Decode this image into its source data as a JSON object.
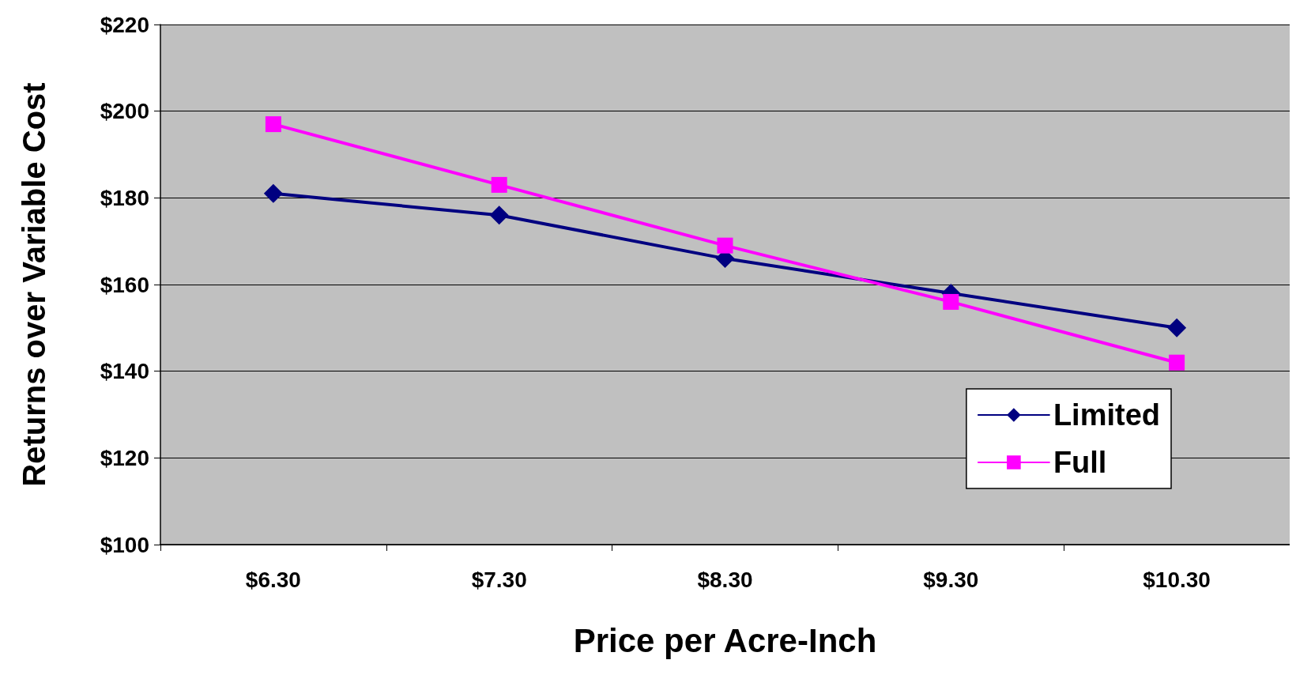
{
  "chart_data": {
    "type": "line",
    "xlabel": "Price per Acre-Inch",
    "ylabel": "Returns over Variable Cost",
    "categories": [
      "$6.30",
      "$7.30",
      "$8.30",
      "$9.30",
      "$10.30"
    ],
    "series": [
      {
        "name": "Limited",
        "color": "#000080",
        "marker": "diamond",
        "values": [
          181,
          176,
          166,
          158,
          150
        ]
      },
      {
        "name": "Full",
        "color": "#ff00ff",
        "marker": "square",
        "values": [
          197,
          183,
          169,
          156,
          142
        ]
      }
    ],
    "ylim": [
      100,
      220
    ],
    "yticks": [
      {
        "value": 100,
        "label": "$100"
      },
      {
        "value": 120,
        "label": "$120"
      },
      {
        "value": 140,
        "label": "$140"
      },
      {
        "value": 160,
        "label": "$160"
      },
      {
        "value": 180,
        "label": "$180"
      },
      {
        "value": 200,
        "label": "$200"
      },
      {
        "value": 220,
        "label": "$220"
      }
    ],
    "grid": "y",
    "legend": "bottom right",
    "line_style": "solid"
  }
}
